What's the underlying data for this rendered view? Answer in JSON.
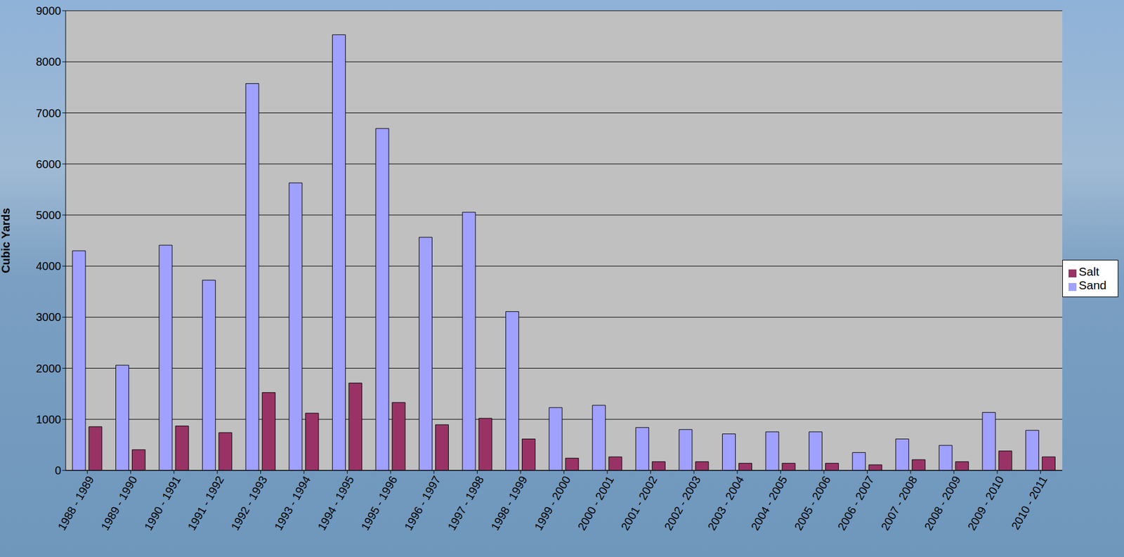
{
  "chart_data": {
    "type": "bar",
    "y_label": "Cubic Yards",
    "categories": [
      "1988 - 1989",
      "1989 - 1990",
      "1990 - 1991",
      "1991 - 1992",
      "1992 - 1993",
      "1993 - 1994",
      "1994 - 1995",
      "1995 - 1996",
      "1996 - 1997",
      "1997 - 1998",
      "1998 - 1999",
      "1999 - 2000",
      "2000 - 2001",
      "2001 - 2002",
      "2002 - 2003",
      "2003 - 2004",
      "2004 - 2005",
      "2005 - 2006",
      "2006 - 2007",
      "2007 - 2008",
      "2008 - 2009",
      "2009 - 2010",
      "2010 - 2011"
    ],
    "series": [
      {
        "name": "Sand",
        "color": "#a0a0ff",
        "values": [
          4300,
          2060,
          4410,
          3725,
          7575,
          5630,
          8530,
          6695,
          4565,
          5055,
          3110,
          1230,
          1275,
          840,
          800,
          715,
          755,
          755,
          350,
          615,
          490,
          1135,
          785
        ]
      },
      {
        "name": "Salt",
        "color": "#993366",
        "values": [
          855,
          405,
          870,
          740,
          1525,
          1120,
          1710,
          1330,
          895,
          1020,
          615,
          240,
          265,
          170,
          170,
          140,
          140,
          140,
          110,
          210,
          170,
          380,
          265
        ]
      }
    ],
    "ylim": [
      0,
      9000
    ],
    "yticks": [
      0,
      1000,
      2000,
      3000,
      4000,
      5000,
      6000,
      7000,
      8000,
      9000
    ],
    "grid": true,
    "legend": "right"
  }
}
